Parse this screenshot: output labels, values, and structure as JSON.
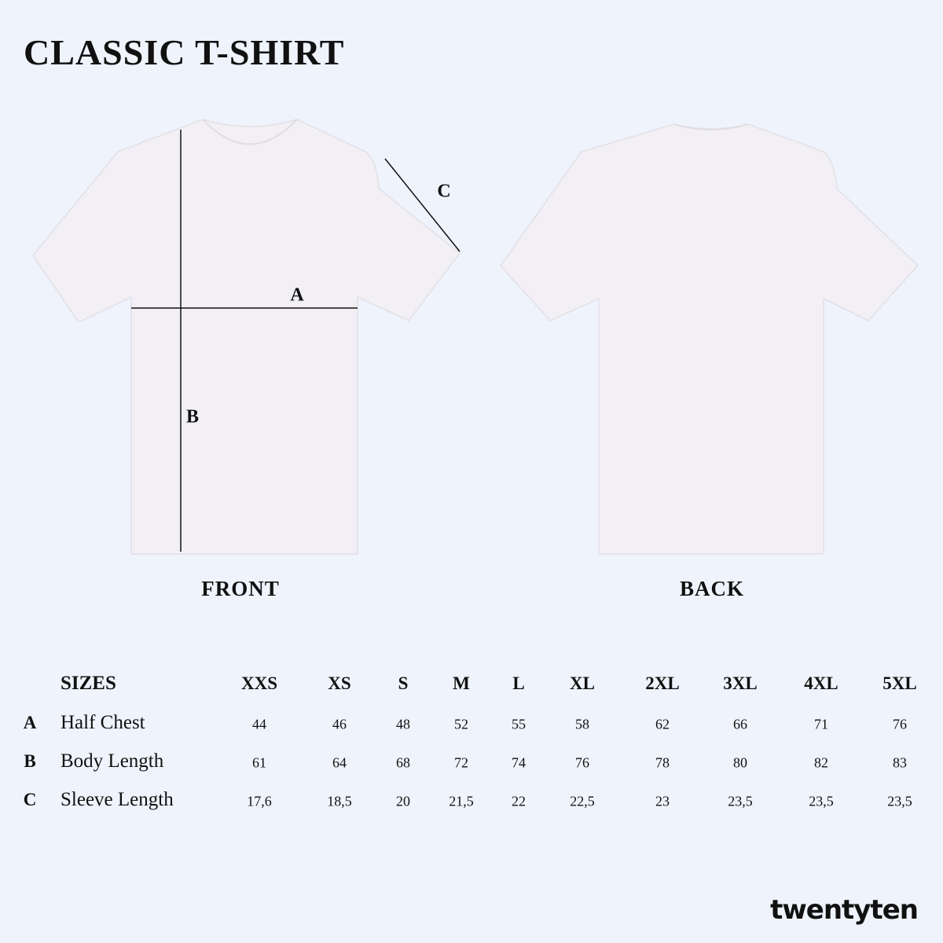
{
  "title": "CLASSIC T-SHIRT",
  "views": {
    "front": "FRONT",
    "back": "BACK"
  },
  "measure_labels": {
    "a": "A",
    "b": "B",
    "c": "C"
  },
  "colors": {
    "background": "#eff3fb",
    "shirt": "#f1eff3",
    "text": "#111111"
  },
  "size_table": {
    "header_label": "SIZES",
    "sizes": [
      "XXS",
      "XS",
      "S",
      "M",
      "L",
      "XL",
      "2XL",
      "3XL",
      "4XL",
      "5XL"
    ],
    "rows": [
      {
        "letter": "A",
        "label": "Half Chest",
        "values": [
          "44",
          "46",
          "48",
          "52",
          "55",
          "58",
          "62",
          "66",
          "71",
          "76"
        ]
      },
      {
        "letter": "B",
        "label": "Body Length",
        "values": [
          "61",
          "64",
          "68",
          "72",
          "74",
          "76",
          "78",
          "80",
          "82",
          "83"
        ]
      },
      {
        "letter": "C",
        "label": "Sleeve Length",
        "values": [
          "17,6",
          "18,5",
          "20",
          "21,5",
          "22",
          "22,5",
          "23",
          "23,5",
          "23,5",
          "23,5"
        ]
      }
    ]
  },
  "brand": "twentyten"
}
